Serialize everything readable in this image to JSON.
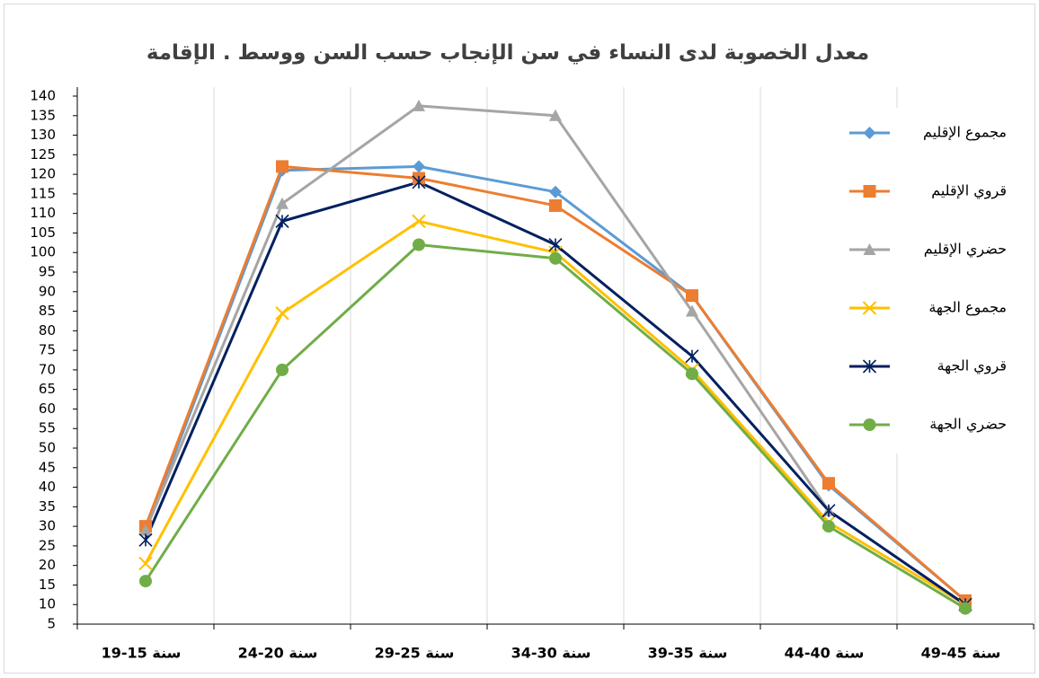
{
  "chart_data": {
    "type": "line",
    "title": "معدل الخصوبة لدى النساء في سن الإنجاب حسب السن ووسط . الإقامة",
    "categories": [
      "19-15 سنة",
      "24-20 سنة",
      "29-25 سنة",
      "34-30 سنة",
      "39-35 سنة",
      "44-40 سنة",
      "49-45 سنة"
    ],
    "ylim": [
      5,
      140
    ],
    "yticks": [
      5,
      10,
      15,
      20,
      25,
      30,
      35,
      40,
      45,
      50,
      55,
      60,
      65,
      70,
      75,
      80,
      85,
      90,
      95,
      100,
      105,
      110,
      115,
      120,
      125,
      130,
      135,
      140
    ],
    "grid": true,
    "legend": "right",
    "series": [
      {
        "name": "مجموع الإقليم",
        "color": "#5b9bd5",
        "marker": "diamond",
        "values": [
          29,
          121,
          122,
          115.5,
          89,
          40.5,
          11
        ]
      },
      {
        "name": "قروي الإقليم",
        "color": "#ed7d31",
        "marker": "square",
        "values": [
          30,
          122,
          119,
          112,
          89,
          41,
          11
        ]
      },
      {
        "name": "حضري الإقليم",
        "color": "#a5a5a5",
        "marker": "triangle",
        "values": [
          29,
          112.5,
          137.5,
          135,
          85,
          34,
          10
        ]
      },
      {
        "name": "مجموع الجهة",
        "color": "#ffc000",
        "marker": "x",
        "values": [
          20.5,
          84.5,
          108,
          100,
          70,
          31,
          10
        ]
      },
      {
        "name": "قروي الجهة",
        "color": "#002060",
        "marker": "star",
        "values": [
          26.5,
          108,
          118,
          102,
          73.5,
          34,
          10
        ]
      },
      {
        "name": "حضري الجهة",
        "color": "#70ad47",
        "marker": "circle",
        "values": [
          16,
          70,
          102,
          98.5,
          69,
          30,
          9
        ]
      }
    ]
  }
}
